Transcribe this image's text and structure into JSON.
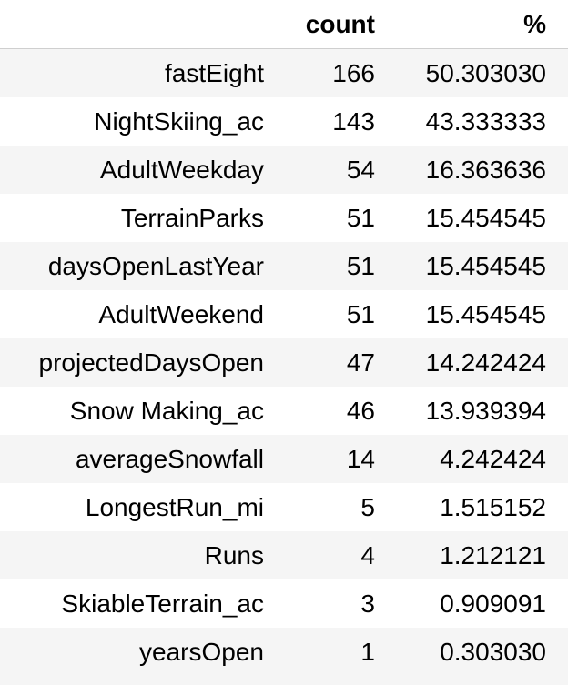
{
  "table": {
    "headers": {
      "index": "",
      "count": "count",
      "pct": "%"
    },
    "rows": [
      {
        "index": "fastEight",
        "count": "166",
        "pct": "50.303030"
      },
      {
        "index": "NightSkiing_ac",
        "count": "143",
        "pct": "43.333333"
      },
      {
        "index": "AdultWeekday",
        "count": "54",
        "pct": "16.363636"
      },
      {
        "index": "TerrainParks",
        "count": "51",
        "pct": "15.454545"
      },
      {
        "index": "daysOpenLastYear",
        "count": "51",
        "pct": "15.454545"
      },
      {
        "index": "AdultWeekend",
        "count": "51",
        "pct": "15.454545"
      },
      {
        "index": "projectedDaysOpen",
        "count": "47",
        "pct": "14.242424"
      },
      {
        "index": "Snow Making_ac",
        "count": "46",
        "pct": "13.939394"
      },
      {
        "index": "averageSnowfall",
        "count": "14",
        "pct": "4.242424"
      },
      {
        "index": "LongestRun_mi",
        "count": "5",
        "pct": "1.515152"
      },
      {
        "index": "Runs",
        "count": "4",
        "pct": "1.212121"
      },
      {
        "index": "SkiableTerrain_ac",
        "count": "3",
        "pct": "0.909091"
      },
      {
        "index": "yearsOpen",
        "count": "1",
        "pct": "0.303030"
      }
    ]
  },
  "colors": {
    "stripe": "#f5f5f5",
    "background": "#ffffff",
    "text": "#000000"
  }
}
